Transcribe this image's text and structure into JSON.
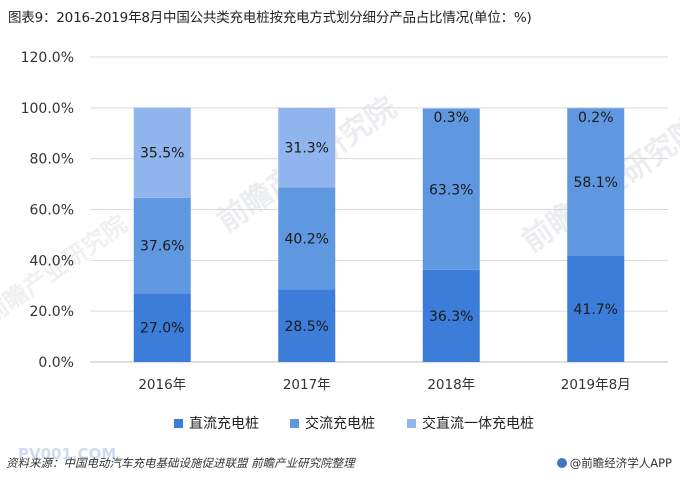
{
  "title": "图表9：2016-2019年8月中国公共类充电桩按充电方式划分细分产品占比情况(单位：%)",
  "watermark": "前瞻产业研究院",
  "footer": {
    "source": "资料来源：中国电动汽车充电基础设施促进联盟 前瞻产业研究院整理",
    "brand": "@前瞻经济学人APP",
    "site_watermark": "PV001.COM"
  },
  "colors": {
    "series": [
      "#3b7dd8",
      "#5f98e0",
      "#8fb5ec"
    ],
    "axis_text": "#333333",
    "grid": "#d9d9d9",
    "label": "#1a1a1a"
  },
  "chart_data": {
    "type": "bar",
    "stacked": true,
    "categories": [
      "2016年",
      "2017年",
      "2018年",
      "2019年8月"
    ],
    "series": [
      {
        "name": "直流充电桩",
        "values": [
          27.0,
          28.5,
          36.3,
          41.7
        ],
        "labels": [
          "27.0%",
          "28.5%",
          "36.3%",
          "41.7%"
        ]
      },
      {
        "name": "交流充电桩",
        "values": [
          37.6,
          40.2,
          63.3,
          58.1
        ],
        "labels": [
          "37.6%",
          "40.2%",
          "63.3%",
          "58.1%"
        ]
      },
      {
        "name": "交直流一体充电桩",
        "values": [
          35.5,
          31.3,
          0.3,
          0.2
        ],
        "labels": [
          "35.5%",
          "31.3%",
          "0.3%",
          "0.2%"
        ]
      }
    ],
    "yticks": [
      "0.0%",
      "20.0%",
      "40.0%",
      "60.0%",
      "80.0%",
      "100.0%",
      "120.0%"
    ],
    "ylim": [
      0,
      120
    ],
    "grid": true,
    "legend_position": "bottom"
  }
}
